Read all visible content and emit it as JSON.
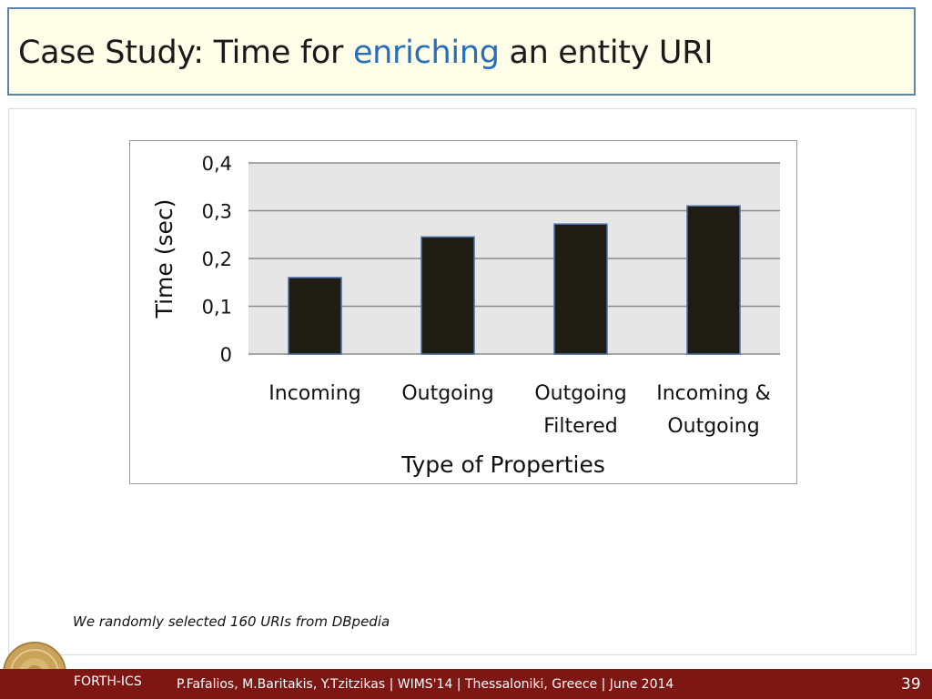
{
  "slide": {
    "title_prefix": "Case Study: Time for",
    "title_highlight": "enriching",
    "title_suffix": "an entity URI",
    "note": "We randomly selected 160 URIs from DBpedia",
    "footer_org": "FORTH-ICS",
    "footer_credits": "P.Fafalios, M.Baritakis, Y.Tzitzikas | WIMS'14 | Thessaloniki, Greece | June 2014",
    "page_number": "39"
  },
  "colors": {
    "title_highlight": "#2a6ebb",
    "title_border": "#5b84b1",
    "title_bg": "#fefde8",
    "bar_fill": "#1f1d13",
    "bar_stroke": "#4a6fa5",
    "plot_bg": "#e6e6e6",
    "footer_bg": "#7d1714"
  },
  "chart_data": {
    "type": "bar",
    "categories": [
      [
        "Incoming"
      ],
      [
        "Outgoing"
      ],
      [
        "Outgoing",
        "Filtered"
      ],
      [
        "Incoming &",
        "Outgoing"
      ]
    ],
    "values": [
      0.16,
      0.245,
      0.272,
      0.31
    ],
    "xlabel": "Type of Properties",
    "ylabel": "Time (sec)",
    "ylim": [
      0,
      0.4
    ],
    "yticks": [
      0,
      0.1,
      0.2,
      0.3,
      0.4
    ],
    "ytick_labels": [
      "0",
      "0,1",
      "0,2",
      "0,3",
      "0,4"
    ],
    "grid": true,
    "legend": "none"
  }
}
